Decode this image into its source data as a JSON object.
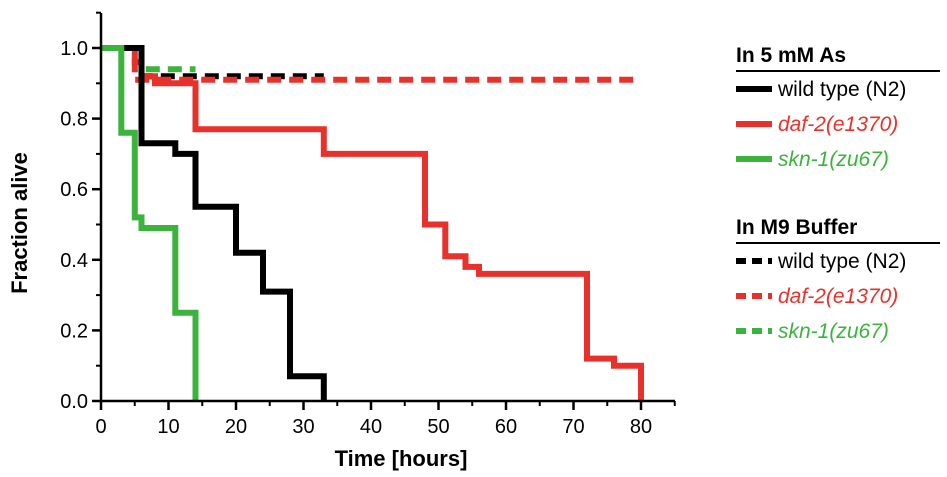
{
  "chart_data": {
    "type": "line",
    "step": true,
    "xlabel": "Time [hours]",
    "ylabel": "Fraction alive",
    "xlim": [
      0,
      80
    ],
    "ylim": [
      0,
      1.0
    ],
    "x_ticks": [
      "0",
      "10",
      "20",
      "30",
      "40",
      "50",
      "60",
      "70",
      "80"
    ],
    "y_ticks": [
      "0.0",
      "0.2",
      "0.4",
      "0.6",
      "0.8",
      "1.0"
    ],
    "grid": false,
    "legend_position": "right",
    "legend_groups": [
      {
        "heading": "In 5 mM As",
        "dashed": false,
        "entries": [
          {
            "label": "wild type (N2)",
            "color": "#000000",
            "italic": false
          },
          {
            "label": "daf-2(e1370)",
            "color": "#e8312a",
            "italic": true
          },
          {
            "label": "skn-1(zu67)",
            "color": "#3cb33c",
            "italic": true
          }
        ]
      },
      {
        "heading": "In M9 Buffer",
        "dashed": true,
        "entries": [
          {
            "label": "wild type (N2)",
            "color": "#000000",
            "italic": false
          },
          {
            "label": "daf-2(e1370)",
            "color": "#e8312a",
            "italic": true
          },
          {
            "label": "skn-1(zu67)",
            "color": "#3cb33c",
            "italic": true
          }
        ]
      }
    ],
    "series": [
      {
        "condition": "In M9 Buffer",
        "strain": "wild type (N2)",
        "color": "#000000",
        "dashed": true,
        "x": [
          0,
          5,
          6,
          33
        ],
        "y": [
          1.0,
          1.0,
          0.92,
          0.92
        ]
      },
      {
        "condition": "In M9 Buffer",
        "strain": "skn-1(zu67)",
        "color": "#3cb33c",
        "dashed": true,
        "x": [
          0,
          6,
          14
        ],
        "y": [
          1.0,
          0.94,
          0.94
        ]
      },
      {
        "condition": "In M9 Buffer",
        "strain": "daf-2(e1370)",
        "color": "#e8312a",
        "dashed": true,
        "x": [
          0,
          5,
          80
        ],
        "y": [
          1.0,
          0.91,
          0.91
        ]
      },
      {
        "condition": "In 5 mM As",
        "strain": "daf-2(e1370)",
        "color": "#e8312a",
        "dashed": false,
        "x": [
          0,
          4,
          5,
          6,
          8,
          10,
          14,
          33,
          48,
          51,
          52,
          54,
          56,
          72,
          76,
          80,
          80
        ],
        "y": [
          1.0,
          1.0,
          0.96,
          0.92,
          0.9,
          0.9,
          0.77,
          0.7,
          0.5,
          0.41,
          0.41,
          0.38,
          0.36,
          0.12,
          0.1,
          0.1,
          0.0
        ]
      },
      {
        "condition": "In 5 mM As",
        "strain": "wild type (N2)",
        "color": "#000000",
        "dashed": false,
        "x": [
          0,
          5,
          6,
          11,
          14,
          20,
          24,
          28,
          33,
          33
        ],
        "y": [
          1.0,
          1.0,
          0.73,
          0.7,
          0.55,
          0.42,
          0.31,
          0.07,
          0.0,
          0.0
        ]
      },
      {
        "condition": "In 5 mM As",
        "strain": "skn-1(zu67)",
        "color": "#3cb33c",
        "dashed": false,
        "x": [
          0,
          3,
          5,
          6,
          11,
          14,
          14
        ],
        "y": [
          1.0,
          0.76,
          0.52,
          0.49,
          0.25,
          0.0,
          0.0
        ]
      }
    ]
  }
}
